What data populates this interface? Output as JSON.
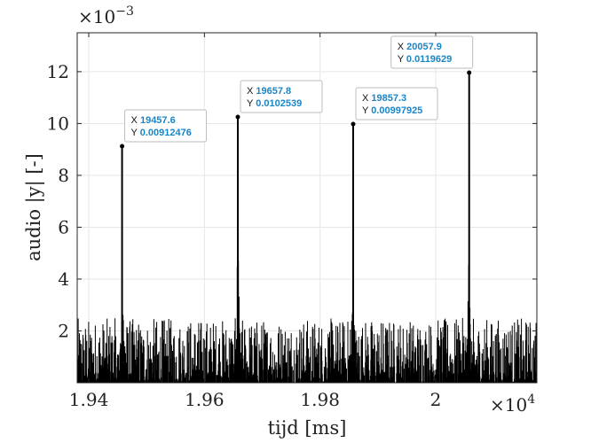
{
  "chart_data": {
    "type": "line",
    "xlabel": "tijd [ms]",
    "ylabel": "audio |y| [-]",
    "x_multiplier": {
      "base": "×10",
      "exp": "4"
    },
    "y_multiplier": {
      "base": "×10",
      "exp": "−3"
    },
    "xlim": [
      19380,
      20175
    ],
    "ylim": [
      0,
      0.0135
    ],
    "x_scale": 10000,
    "y_scale": 0.001,
    "xticks": [
      1.94,
      1.96,
      1.98,
      2
    ],
    "xtick_labels": [
      "1.94",
      "1.96",
      "1.98",
      "2"
    ],
    "yticks": [
      2,
      4,
      6,
      8,
      10,
      12
    ],
    "ytick_labels": [
      "2",
      "4",
      "6",
      "8",
      "10",
      "12"
    ],
    "grid": true,
    "series": [
      {
        "color": "#000000",
        "peaks": [
          {
            "x": 19457.6,
            "y": 0.00912476
          },
          {
            "x": 19657.8,
            "y": 0.0102539
          },
          {
            "x": 19857.3,
            "y": 0.00997925
          },
          {
            "x": 20057.9,
            "y": 0.0119629
          }
        ],
        "noise_level": 0.0012,
        "noise_max": 0.0025
      }
    ],
    "datatips": [
      {
        "x_key": "X",
        "x_val": "19457.6",
        "y_key": "Y",
        "y_val": "0.00912476"
      },
      {
        "x_key": "X",
        "x_val": "19657.8",
        "y_key": "Y",
        "y_val": "0.0102539"
      },
      {
        "x_key": "X",
        "x_val": "19857.3",
        "y_key": "Y",
        "y_val": "0.00997925"
      },
      {
        "x_key": "X",
        "x_val": "20057.9",
        "y_key": "Y",
        "y_val": "0.0119629"
      }
    ],
    "colors": {
      "line": "#000000",
      "tip_value": "#1a86c8",
      "grid": "#e6e6e6"
    }
  }
}
